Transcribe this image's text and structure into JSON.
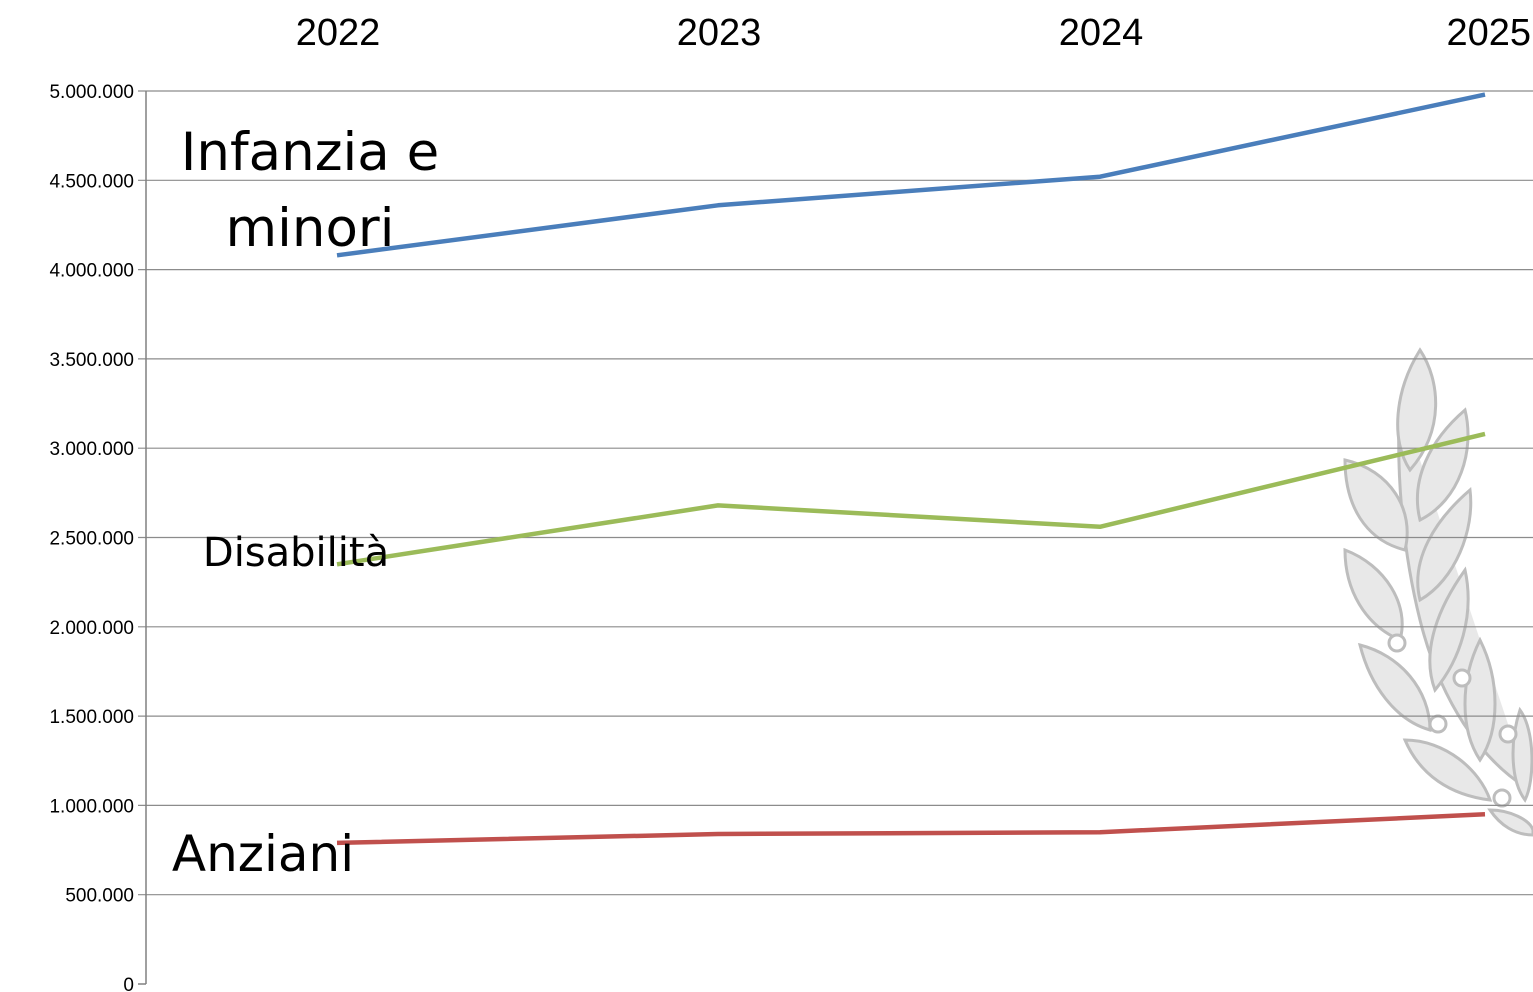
{
  "chart_data": {
    "type": "line",
    "categories": [
      "2022",
      "2023",
      "2024",
      "2025"
    ],
    "ylim": [
      0,
      5000000
    ],
    "yticks": [
      0,
      500000,
      1000000,
      1500000,
      2000000,
      2500000,
      3000000,
      3500000,
      4000000,
      4500000,
      5000000
    ],
    "ytick_labels": [
      "0",
      "500.000",
      "1.000.000",
      "1.500.000",
      "2.000.000",
      "2.500.000",
      "3.000.000",
      "3.500.000",
      "4.000.000",
      "4.500.000",
      "5.000.000"
    ],
    "x_axis_position": "top",
    "grid": true,
    "series": [
      {
        "name": "Infanzia e minori",
        "label_lines": [
          "Infanzia e",
          "minori"
        ],
        "color": "#4a7ebb",
        "values": [
          4080000,
          4360000,
          4520000,
          4980000
        ]
      },
      {
        "name": "Disabilità",
        "label_lines": [
          "Disabilità"
        ],
        "color": "#9bbb59",
        "values": [
          2350000,
          2680000,
          2560000,
          3080000
        ]
      },
      {
        "name": "Anziani",
        "label_lines": [
          "Anziani"
        ],
        "color": "#c0504d",
        "values": [
          790000,
          840000,
          850000,
          950000
        ]
      }
    ]
  }
}
